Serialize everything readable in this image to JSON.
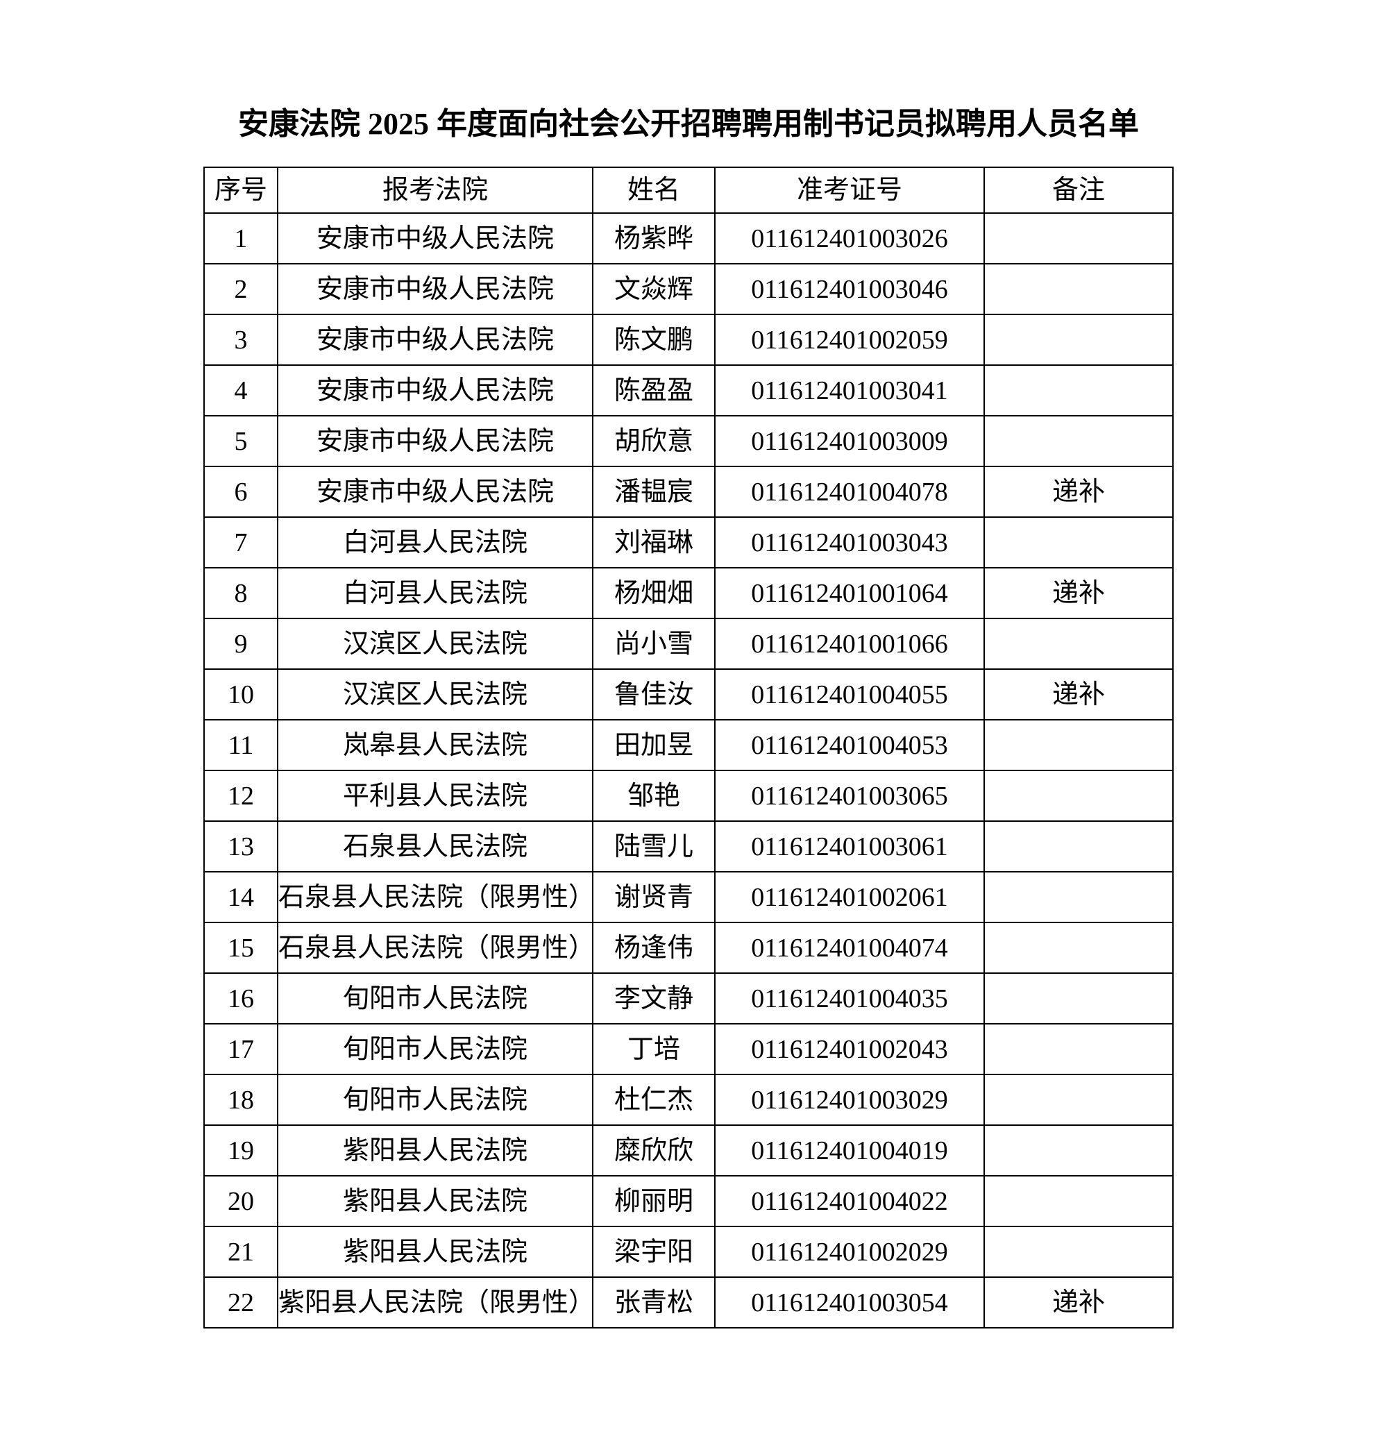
{
  "title": "安康法院 2025 年度面向社会公开招聘聘用制书记员拟聘用人员名单",
  "table": {
    "headers": [
      "序号",
      "报考法院",
      "姓名",
      "准考证号",
      "备注"
    ],
    "rows": [
      [
        "1",
        "安康市中级人民法院",
        "杨紫晔",
        "011612401003026",
        ""
      ],
      [
        "2",
        "安康市中级人民法院",
        "文焱辉",
        "011612401003046",
        ""
      ],
      [
        "3",
        "安康市中级人民法院",
        "陈文鹏",
        "011612401002059",
        ""
      ],
      [
        "4",
        "安康市中级人民法院",
        "陈盈盈",
        "011612401003041",
        ""
      ],
      [
        "5",
        "安康市中级人民法院",
        "胡欣意",
        "011612401003009",
        ""
      ],
      [
        "6",
        "安康市中级人民法院",
        "潘韫宸",
        "011612401004078",
        "递补"
      ],
      [
        "7",
        "白河县人民法院",
        "刘福琳",
        "011612401003043",
        ""
      ],
      [
        "8",
        "白河县人民法院",
        "杨畑畑",
        "011612401001064",
        "递补"
      ],
      [
        "9",
        "汉滨区人民法院",
        "尚小雪",
        "011612401001066",
        ""
      ],
      [
        "10",
        "汉滨区人民法院",
        "鲁佳汝",
        "011612401004055",
        "递补"
      ],
      [
        "11",
        "岚皋县人民法院",
        "田加昱",
        "011612401004053",
        ""
      ],
      [
        "12",
        "平利县人民法院",
        "邹艳",
        "011612401003065",
        ""
      ],
      [
        "13",
        "石泉县人民法院",
        "陆雪儿",
        "011612401003061",
        ""
      ],
      [
        "14",
        "石泉县人民法院（限男性）",
        "谢贤青",
        "011612401002061",
        ""
      ],
      [
        "15",
        "石泉县人民法院（限男性）",
        "杨逢伟",
        "011612401004074",
        ""
      ],
      [
        "16",
        "旬阳市人民法院",
        "李文静",
        "011612401004035",
        ""
      ],
      [
        "17",
        "旬阳市人民法院",
        "丁培",
        "011612401002043",
        ""
      ],
      [
        "18",
        "旬阳市人民法院",
        "杜仁杰",
        "011612401003029",
        ""
      ],
      [
        "19",
        "紫阳县人民法院",
        "糜欣欣",
        "011612401004019",
        ""
      ],
      [
        "20",
        "紫阳县人民法院",
        "柳丽明",
        "011612401004022",
        ""
      ],
      [
        "21",
        "紫阳县人民法院",
        "梁宇阳",
        "011612401002029",
        ""
      ],
      [
        "22",
        "紫阳县人民法院（限男性）",
        "张青松",
        "011612401003054",
        "递补"
      ]
    ]
  }
}
